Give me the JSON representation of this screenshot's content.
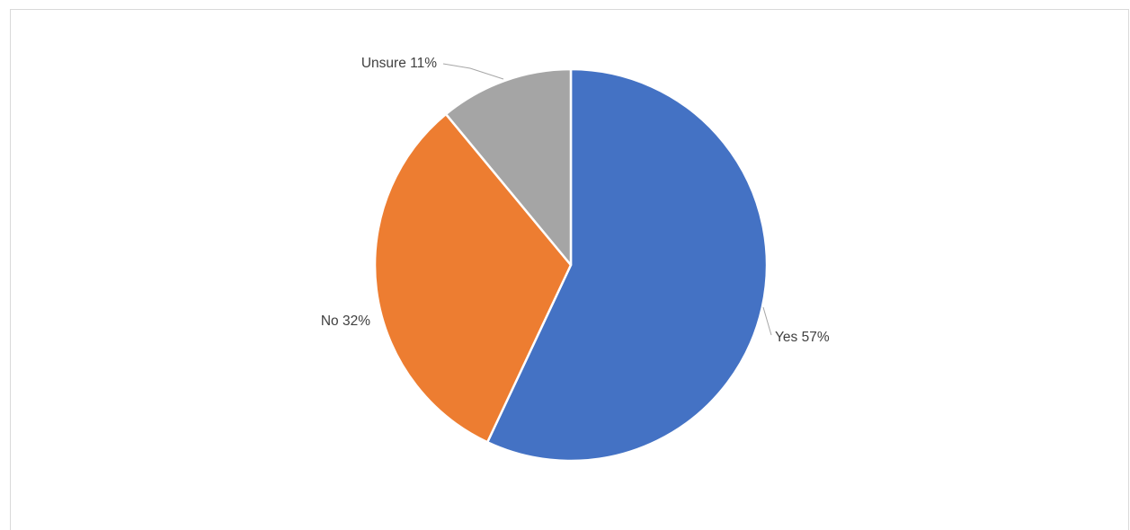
{
  "chart_data": {
    "type": "pie",
    "categories": [
      "Yes",
      "No",
      "Unsure"
    ],
    "values": [
      57,
      32,
      11
    ],
    "unit": "%",
    "colors": [
      "#4472C4",
      "#ED7D31",
      "#A5A5A5"
    ],
    "data_labels": [
      "Yes 57%",
      "No 32%",
      "Unsure 11%"
    ],
    "start_angle": "12 o'clock",
    "direction": "clockwise",
    "title": "",
    "legend": "none"
  }
}
